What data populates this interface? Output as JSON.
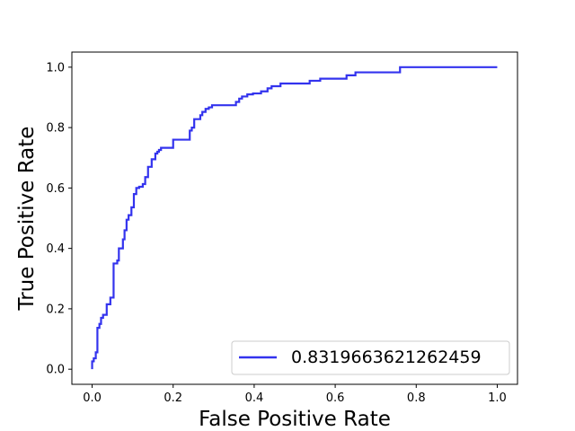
{
  "chart_data": {
    "type": "line",
    "xlabel": "False Positive Rate",
    "ylabel": "True Positive Rate",
    "xlim": [
      -0.05,
      1.05
    ],
    "ylim": [
      -0.05,
      1.05
    ],
    "x_ticks": [
      "0.0",
      "0.2",
      "0.4",
      "0.6",
      "0.8",
      "1.0"
    ],
    "y_ticks": [
      "0.0",
      "0.2",
      "0.4",
      "0.6",
      "0.8",
      "1.0"
    ],
    "x_tick_values": [
      0,
      0.2,
      0.4,
      0.6,
      0.8,
      1.0
    ],
    "y_tick_values": [
      0,
      0.2,
      0.4,
      0.6,
      0.8,
      1.0
    ],
    "grid": false,
    "legend_position": "lower-right",
    "series": [
      {
        "name": "0.8319663621262459",
        "color": "#3333ee",
        "step": true,
        "x": [
          0.0,
          0.0,
          0.004,
          0.004,
          0.009,
          0.009,
          0.013,
          0.013,
          0.018,
          0.018,
          0.022,
          0.022,
          0.027,
          0.027,
          0.036,
          0.036,
          0.045,
          0.045,
          0.053,
          0.053,
          0.062,
          0.062,
          0.066,
          0.066,
          0.076,
          0.076,
          0.08,
          0.08,
          0.085,
          0.085,
          0.09,
          0.09,
          0.097,
          0.097,
          0.103,
          0.103,
          0.109,
          0.109,
          0.116,
          0.116,
          0.125,
          0.125,
          0.131,
          0.131,
          0.138,
          0.138,
          0.147,
          0.147,
          0.156,
          0.156,
          0.161,
          0.161,
          0.165,
          0.165,
          0.17,
          0.17,
          0.175,
          0.175,
          0.182,
          0.182,
          0.2,
          0.2,
          0.241,
          0.241,
          0.246,
          0.246,
          0.252,
          0.252,
          0.267,
          0.267,
          0.272,
          0.272,
          0.28,
          0.28,
          0.288,
          0.288,
          0.296,
          0.296,
          0.355,
          0.355,
          0.363,
          0.363,
          0.37,
          0.37,
          0.383,
          0.383,
          0.397,
          0.397,
          0.417,
          0.417,
          0.433,
          0.433,
          0.443,
          0.443,
          0.465,
          0.465,
          0.537,
          0.537,
          0.563,
          0.563,
          0.628,
          0.628,
          0.65,
          0.65,
          0.76,
          0.76,
          0.915,
          0.915,
          1.0
        ],
        "y": [
          0.0,
          0.026,
          0.026,
          0.036,
          0.036,
          0.056,
          0.056,
          0.137,
          0.137,
          0.15,
          0.15,
          0.17,
          0.17,
          0.18,
          0.18,
          0.215,
          0.215,
          0.237,
          0.237,
          0.35,
          0.35,
          0.36,
          0.36,
          0.4,
          0.4,
          0.43,
          0.43,
          0.46,
          0.46,
          0.495,
          0.495,
          0.51,
          0.51,
          0.536,
          0.536,
          0.58,
          0.58,
          0.6,
          0.6,
          0.604,
          0.604,
          0.613,
          0.613,
          0.636,
          0.636,
          0.67,
          0.67,
          0.695,
          0.695,
          0.714,
          0.714,
          0.72,
          0.72,
          0.726,
          0.726,
          0.733,
          0.733,
          0.733,
          0.733,
          0.733,
          0.733,
          0.76,
          0.76,
          0.79,
          0.79,
          0.8,
          0.8,
          0.828,
          0.828,
          0.841,
          0.841,
          0.852,
          0.852,
          0.862,
          0.862,
          0.867,
          0.867,
          0.874,
          0.874,
          0.885,
          0.885,
          0.896,
          0.896,
          0.903,
          0.903,
          0.91,
          0.91,
          0.913,
          0.913,
          0.92,
          0.92,
          0.93,
          0.93,
          0.937,
          0.937,
          0.946,
          0.946,
          0.955,
          0.955,
          0.962,
          0.962,
          0.973,
          0.973,
          0.983,
          0.983,
          1.0,
          1.0,
          1.0,
          1.0
        ]
      }
    ]
  }
}
